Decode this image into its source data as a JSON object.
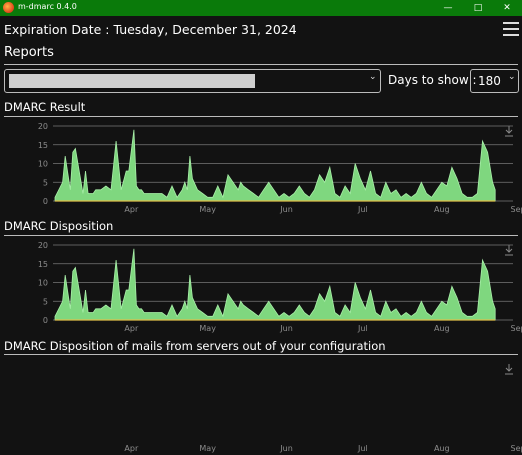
{
  "window": {
    "title": "m-dmarc 0.4.0",
    "minimize_glyph": "—",
    "maximize_glyph": "□",
    "close_glyph": "✕"
  },
  "header": {
    "expiration_label": "Expiration Date : Tuesday, December 31, 2024",
    "menu_icon": "hamburger-icon"
  },
  "reports": {
    "title": "Reports",
    "selected_report": "",
    "days_label": "Days to show :",
    "days_value": "180",
    "chevron_glyph": "⌄"
  },
  "colors": {
    "titlebar": "#0a7a0a",
    "area_fill": "#7fd77f",
    "area_stroke": "#a8eea8",
    "baseline": "#e0c04a",
    "grid": "#777777",
    "axis_text": "#8c8c8c"
  },
  "chart_data": [
    {
      "type": "area",
      "title": "DMARC Result",
      "yticks": [
        0,
        5,
        10,
        15,
        20
      ],
      "ylim": [
        0,
        20
      ],
      "xticks": [
        "Apr",
        "May",
        "Jun",
        "Jul",
        "Aug",
        "Sep"
      ],
      "x_range": [
        0,
        180
      ],
      "x_tick_positions": [
        30,
        60,
        91,
        121,
        152,
        182
      ],
      "x": [
        0,
        3,
        4,
        6,
        7,
        8,
        11,
        12,
        13,
        15,
        16,
        18,
        20,
        22,
        24,
        26,
        28,
        29,
        31,
        32,
        33,
        34,
        35,
        36,
        38,
        40,
        42,
        44,
        46,
        48,
        50,
        51,
        52,
        53,
        54,
        56,
        58,
        60,
        62,
        64,
        66,
        68,
        70,
        72,
        73,
        74,
        76,
        78,
        80,
        82,
        84,
        86,
        88,
        90,
        92,
        94,
        96,
        98,
        100,
        102,
        104,
        106,
        108,
        110,
        112,
        114,
        116,
        118,
        120,
        122,
        124,
        126,
        128,
        130,
        132,
        134,
        136,
        138,
        140,
        142,
        144,
        146,
        148,
        150,
        152,
        154,
        156,
        158,
        160,
        162,
        164,
        166,
        168,
        170,
        172,
        173
      ],
      "values": [
        1,
        5,
        12,
        3,
        13,
        14,
        2,
        8,
        2,
        2,
        3,
        3,
        4,
        3,
        16,
        3,
        8,
        8,
        19,
        4,
        3,
        3,
        2,
        2,
        2,
        2,
        2,
        1,
        4,
        1,
        3,
        5,
        3,
        12,
        6,
        3,
        2,
        1,
        1,
        4,
        1,
        7,
        5,
        3,
        5,
        4,
        3,
        2,
        1,
        3,
        5,
        3,
        1,
        2,
        1,
        2,
        4,
        2,
        1,
        3,
        7,
        5,
        9,
        2,
        1,
        4,
        2,
        10,
        6,
        3,
        8,
        2,
        1,
        5,
        2,
        3,
        1,
        2,
        1,
        2,
        5,
        2,
        1,
        3,
        5,
        4,
        9,
        6,
        2,
        1,
        1,
        2,
        16,
        13,
        5,
        3
      ],
      "download_icon": "download-icon"
    },
    {
      "type": "area",
      "title": "DMARC Disposition",
      "yticks": [
        0,
        5,
        10,
        15,
        20
      ],
      "ylim": [
        0,
        20
      ],
      "xticks": [
        "Apr",
        "May",
        "Jun",
        "Jul",
        "Aug",
        "Sep"
      ],
      "x_range": [
        0,
        180
      ],
      "x_tick_positions": [
        30,
        60,
        91,
        121,
        152,
        182
      ],
      "x": [
        0,
        3,
        4,
        6,
        7,
        8,
        11,
        12,
        13,
        15,
        16,
        18,
        20,
        22,
        24,
        26,
        28,
        29,
        31,
        32,
        33,
        34,
        35,
        36,
        38,
        40,
        42,
        44,
        46,
        48,
        50,
        51,
        52,
        53,
        54,
        56,
        58,
        60,
        62,
        64,
        66,
        68,
        70,
        72,
        73,
        74,
        76,
        78,
        80,
        82,
        84,
        86,
        88,
        90,
        92,
        94,
        96,
        98,
        100,
        102,
        104,
        106,
        108,
        110,
        112,
        114,
        116,
        118,
        120,
        122,
        124,
        126,
        128,
        130,
        132,
        134,
        136,
        138,
        140,
        142,
        144,
        146,
        148,
        150,
        152,
        154,
        156,
        158,
        160,
        162,
        164,
        166,
        168,
        170,
        172,
        173
      ],
      "values": [
        1,
        5,
        12,
        3,
        13,
        14,
        2,
        8,
        2,
        2,
        3,
        3,
        4,
        3,
        16,
        3,
        8,
        8,
        19,
        4,
        3,
        3,
        2,
        2,
        2,
        2,
        2,
        1,
        4,
        1,
        3,
        5,
        3,
        12,
        6,
        3,
        2,
        1,
        1,
        4,
        1,
        7,
        5,
        3,
        5,
        4,
        3,
        2,
        1,
        3,
        5,
        3,
        1,
        2,
        1,
        2,
        4,
        2,
        1,
        3,
        7,
        5,
        9,
        2,
        1,
        4,
        2,
        10,
        6,
        3,
        8,
        2,
        1,
        5,
        2,
        3,
        1,
        2,
        1,
        2,
        5,
        2,
        1,
        3,
        5,
        4,
        9,
        6,
        2,
        1,
        1,
        2,
        16,
        13,
        5,
        3
      ],
      "download_icon": "download-icon"
    },
    {
      "type": "area",
      "title": "DMARC Disposition of mails from servers out of your configuration",
      "xticks": [
        "Apr",
        "May",
        "Jun",
        "Jul",
        "Aug",
        "Sep"
      ],
      "x_range": [
        0,
        180
      ],
      "x_tick_positions": [
        30,
        60,
        91,
        121,
        152,
        182
      ],
      "x": [],
      "values": [],
      "download_icon": "download-icon"
    }
  ]
}
